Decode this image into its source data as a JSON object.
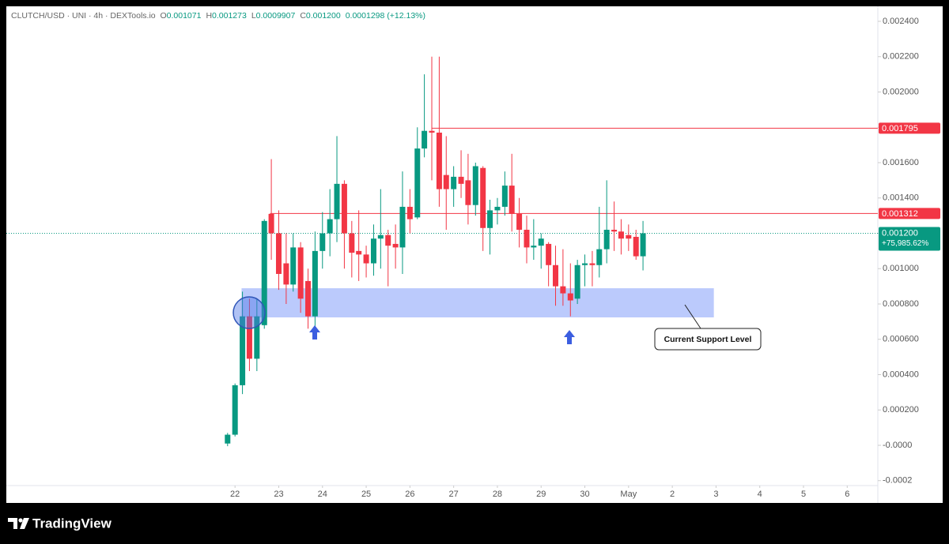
{
  "header": {
    "symbol": "CLUTCH/USD · UNI · 4h · DEXTools.io",
    "ohlc": [
      {
        "key": "O",
        "value": "0.001071"
      },
      {
        "key": "H",
        "value": "0.001273"
      },
      {
        "key": "L",
        "value": "0.0009907"
      },
      {
        "key": "C",
        "value": "0.001200"
      }
    ],
    "change": "0.0001298 (+12.13%)"
  },
  "chart_data": {
    "type": "candlestick",
    "up_color": "#089981",
    "down_color": "#f23645",
    "x": [
      21.83,
      22.0,
      22.17,
      22.33,
      22.5,
      22.67,
      22.83,
      23.0,
      23.17,
      23.33,
      23.5,
      23.67,
      23.83,
      24.0,
      24.17,
      24.33,
      24.5,
      24.67,
      24.83,
      25.0,
      25.17,
      25.33,
      25.5,
      25.67,
      25.83,
      26.0,
      26.17,
      26.33,
      26.5,
      26.67,
      26.83,
      27.0,
      27.17,
      27.33,
      27.5,
      27.67,
      27.83,
      28.0,
      28.17,
      28.33,
      28.5,
      28.67,
      28.83,
      29.0,
      29.17,
      29.33,
      29.5,
      29.67,
      29.83,
      30.0,
      30.17,
      30.33,
      30.5,
      30.67,
      30.83,
      31.0,
      31.17,
      31.33
    ],
    "open": [
      1e-05,
      6e-05,
      0.00034,
      0.00073,
      0.00049,
      0.00068,
      0.00131,
      0.0012,
      0.00103,
      0.00091,
      0.00112,
      0.00093,
      0.00073,
      0.0011,
      0.0012,
      0.00128,
      0.00148,
      0.0012,
      0.0011,
      0.00108,
      0.00103,
      0.00117,
      0.00119,
      0.00114,
      0.00112,
      0.00135,
      0.00129,
      0.00168,
      0.00178,
      0.00177,
      0.00153,
      0.00145,
      0.00152,
      0.0015,
      0.00136,
      0.00157,
      0.00123,
      0.00133,
      0.00135,
      0.00147,
      0.00131,
      0.00122,
      0.00112,
      0.00113,
      0.00114,
      0.00102,
      0.0009,
      0.00086,
      0.00083,
      0.00102,
      0.00103,
      0.00102,
      0.00111,
      0.00122,
      0.00121,
      0.00119,
      0.00118,
      0.00107
    ],
    "high": [
      7e-05,
      0.00035,
      0.00087,
      0.00083,
      0.00083,
      0.00128,
      0.00162,
      0.00133,
      0.0012,
      0.0012,
      0.00115,
      0.001,
      0.00121,
      0.00132,
      0.00145,
      0.00175,
      0.0015,
      0.00127,
      0.00133,
      0.00113,
      0.00125,
      0.00145,
      0.00122,
      0.00125,
      0.00155,
      0.00145,
      0.0018,
      0.0021,
      0.0022,
      0.0022,
      0.00175,
      0.00158,
      0.00167,
      0.00165,
      0.0016,
      0.00158,
      0.00139,
      0.0014,
      0.00155,
      0.00165,
      0.0014,
      0.0013,
      0.00128,
      0.0012,
      0.00115,
      0.00113,
      0.00111,
      0.00103,
      0.00105,
      0.00108,
      0.0011,
      0.00135,
      0.0015,
      0.00138,
      0.00128,
      0.00125,
      0.00122,
      0.00127
    ],
    "low": [
      -5e-06,
      5e-05,
      0.00029,
      0.00042,
      0.00042,
      0.00066,
      0.00105,
      0.00088,
      0.0008,
      0.00087,
      0.00075,
      0.00066,
      0.00063,
      0.001,
      0.00107,
      0.00115,
      0.001,
      0.00095,
      0.00093,
      0.00095,
      0.00096,
      0.001,
      0.0009,
      0.001,
      0.00097,
      0.0012,
      0.00128,
      0.00163,
      0.0015,
      0.00135,
      0.00122,
      0.00135,
      0.0014,
      0.00125,
      0.0013,
      0.0011,
      0.00108,
      0.00125,
      0.0013,
      0.00121,
      0.00112,
      0.00103,
      0.00105,
      0.001,
      0.0009,
      0.00079,
      0.00079,
      0.00073,
      0.0008,
      0.0009,
      0.0009,
      0.00095,
      0.00103,
      0.0011,
      0.00108,
      0.0011,
      0.00105,
      0.00099
    ],
    "close": [
      6e-05,
      0.00034,
      0.00073,
      0.00049,
      0.00073,
      0.00127,
      0.0012,
      0.00097,
      0.00091,
      0.00112,
      0.00083,
      0.00073,
      0.0011,
      0.0012,
      0.00128,
      0.00148,
      0.0012,
      0.00109,
      0.00108,
      0.00103,
      0.00117,
      0.00119,
      0.00113,
      0.00112,
      0.00135,
      0.00128,
      0.00168,
      0.00178,
      0.00177,
      0.00145,
      0.00145,
      0.00152,
      0.00148,
      0.00136,
      0.00158,
      0.00123,
      0.00133,
      0.00135,
      0.00147,
      0.00131,
      0.00122,
      0.00112,
      0.00113,
      0.00117,
      0.00102,
      0.0009,
      0.00086,
      0.00082,
      0.00102,
      0.00103,
      0.00102,
      0.00111,
      0.00122,
      0.00121,
      0.00117,
      0.00117,
      0.00107,
      0.0012
    ],
    "xlim": [
      16.77,
      36.7
    ],
    "xticks": [
      22,
      23,
      24,
      25,
      26,
      27,
      28,
      29,
      30,
      {
        "value": 31,
        "label": "May"
      },
      {
        "value": 32,
        "label": "2"
      },
      {
        "value": 33,
        "label": "3"
      },
      {
        "value": 34,
        "label": "4"
      },
      {
        "value": 35,
        "label": "5"
      },
      {
        "value": 36,
        "label": "6"
      }
    ],
    "ylim": [
      -0.000228,
      0.002476
    ],
    "yticks": [
      {
        "value": 0.0024,
        "label": "0.002400"
      },
      {
        "value": 0.0022,
        "label": "0.002200"
      },
      {
        "value": 0.002,
        "label": "0.002000"
      },
      {
        "value": 0.0018,
        "label": "0.001800"
      },
      {
        "value": 0.0016,
        "label": "0.001600"
      },
      {
        "value": 0.0014,
        "label": "0.001400"
      },
      {
        "value": 0.0012,
        "label": "0.001200"
      },
      {
        "value": 0.001,
        "label": "0.001000"
      },
      {
        "value": 0.0008,
        "label": "0.000800"
      },
      {
        "value": 0.0006,
        "label": "0.000600"
      },
      {
        "value": 0.0004,
        "label": "0.000400"
      },
      {
        "value": 0.0002,
        "label": "0.000200"
      },
      {
        "value": 0,
        "label": "-0.0000"
      },
      {
        "value": -0.0002,
        "label": "-0.0002"
      }
    ],
    "grid": false,
    "levels": [
      {
        "value": 0.001795,
        "start": 26.5,
        "color": "#f23645"
      },
      {
        "value": 0.001312,
        "start": 22.8,
        "color": "#f23645"
      }
    ],
    "current": {
      "value": 0.0012,
      "label": "0.001200",
      "change": "+75,985.62%",
      "color": "#089981"
    },
    "support_zone": {
      "low": 0.000724,
      "high": 0.000889,
      "start": 22.15,
      "end": 32.95,
      "label": "Current Support Level"
    }
  },
  "footer": {
    "brand": "TradingView"
  }
}
